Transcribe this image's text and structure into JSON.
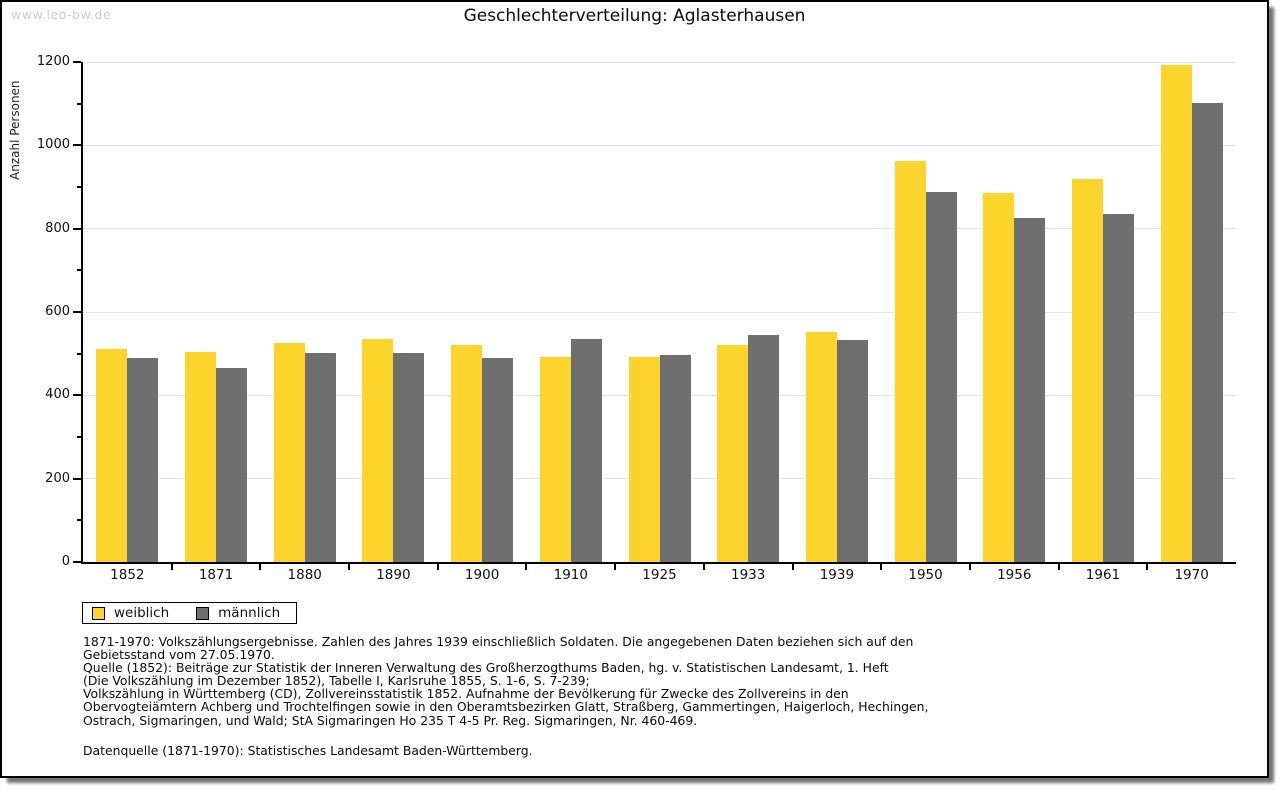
{
  "watermark": "www.leo-bw.de",
  "header": {
    "title": "Geschlechterverteilung: Aglasterhausen"
  },
  "y_axis": {
    "label": "Anzahl Personen"
  },
  "legend": {
    "items": [
      {
        "label": "weiblich",
        "color": "#FCD42C"
      },
      {
        "label": "männlich",
        "color": "#6F6F6F"
      }
    ]
  },
  "notes": "1871-1970: Volkszählungsergebnisse. Zahlen des Jahres 1939 einschließlich Soldaten. Die angegebenen Daten beziehen sich auf den\nGebietsstand vom 27.05.1970.\nQuelle (1852): Beiträge zur Statistik der Inneren Verwaltung des Großherzogthums Baden, hg. v. Statistischen Landesamt, 1. Heft\n(Die Volkszählung im Dezember 1852), Tabelle I, Karlsruhe 1855, S. 1-6, S. 7-239;\nVolkszählung in Württemberg (CD), Zollvereinsstatistik 1852. Aufnahme der Bevölkerung für Zwecke des Zollvereins in den\nObervogteiämtern Achberg und Trochtelfingen sowie in den Oberamtsbezirken Glatt, Straßberg, Gammertingen, Haigerloch, Hechingen,\nOstrach, Sigmaringen, und Wald; StA Sigmaringen Ho 235 T 4-5 Pr. Reg. Sigmaringen, Nr. 460-469.",
  "source": "Datenquelle (1871-1970): Statistisches Landesamt Baden-Württemberg.",
  "chart_data": {
    "type": "bar",
    "title": "Geschlechterverteilung: Aglasterhausen",
    "categories": [
      "1852",
      "1871",
      "1880",
      "1890",
      "1900",
      "1910",
      "1925",
      "1933",
      "1939",
      "1950",
      "1956",
      "1961",
      "1970"
    ],
    "series": [
      {
        "name": "weiblich",
        "color": "#FCD42C",
        "values": [
          512,
          504,
          526,
          536,
          520,
          493,
          493,
          520,
          552,
          962,
          886,
          920,
          1194
        ]
      },
      {
        "name": "männlich",
        "color": "#6F6F6F",
        "values": [
          490,
          466,
          502,
          502,
          490,
          536,
          496,
          544,
          533,
          887,
          826,
          835,
          1101
        ]
      }
    ],
    "xlabel": "",
    "ylabel": "Anzahl Personen",
    "ylim": [
      0,
      1200
    ],
    "ytick_major": 200,
    "ytick_minor": 100,
    "grid": true,
    "legend_position": "bottom-left"
  }
}
